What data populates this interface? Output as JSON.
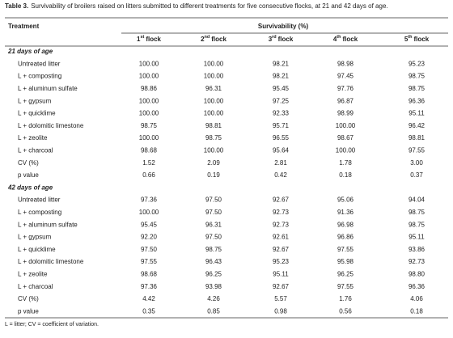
{
  "table": {
    "label": "Table 3.",
    "caption": "Survivability of broilers raised on litters submitted to different treatments for five consecutive flocks, at 21 and 42 days of age.",
    "row_header": "Treatment",
    "group_header": "Survivability (%)",
    "columns": [
      {
        "number": "1",
        "suffix": "st",
        "word": "flock"
      },
      {
        "number": "2",
        "suffix": "nd",
        "word": "flock"
      },
      {
        "number": "3",
        "suffix": "rd",
        "word": "flock"
      },
      {
        "number": "4",
        "suffix": "th",
        "word": "flock"
      },
      {
        "number": "5",
        "suffix": "th",
        "word": "flock"
      }
    ],
    "sections": [
      {
        "heading": "21 days of age",
        "rows": [
          {
            "treatment": "Untreated litter",
            "values": [
              "100.00",
              "100.00",
              "98.21",
              "98.98",
              "95.23"
            ]
          },
          {
            "treatment": "L + composting",
            "values": [
              "100.00",
              "100.00",
              "98.21",
              "97.45",
              "98.75"
            ]
          },
          {
            "treatment": "L + aluminum sulfate",
            "values": [
              "98.86",
              "96.31",
              "95.45",
              "97.76",
              "98.75"
            ]
          },
          {
            "treatment": "L + gypsum",
            "values": [
              "100.00",
              "100.00",
              "97.25",
              "96.87",
              "96.36"
            ]
          },
          {
            "treatment": "L + quicklime",
            "values": [
              "100.00",
              "100.00",
              "92.33",
              "98.99",
              "95.11"
            ]
          },
          {
            "treatment": "L + dolomitic limestone",
            "values": [
              "98.75",
              "98.81",
              "95.71",
              "100.00",
              "96.42"
            ]
          },
          {
            "treatment": "L + zeolite",
            "values": [
              "100.00",
              "98.75",
              "96.55",
              "98.67",
              "98.81"
            ]
          },
          {
            "treatment": "L + charcoal",
            "values": [
              "98.68",
              "100.00",
              "95.64",
              "100.00",
              "97.55"
            ]
          },
          {
            "treatment": "CV (%)",
            "values": [
              "1.52",
              "2.09",
              "2.81",
              "1.78",
              "3.00"
            ]
          },
          {
            "treatment": "p value",
            "values": [
              "0.66",
              "0.19",
              "0.42",
              "0.18",
              "0.37"
            ]
          }
        ]
      },
      {
        "heading": "42 days of age",
        "rows": [
          {
            "treatment": "Untreated litter",
            "values": [
              "97.36",
              "97.50",
              "92.67",
              "95.06",
              "94.04"
            ]
          },
          {
            "treatment": "L + composting",
            "values": [
              "100.00",
              "97.50",
              "92.73",
              "91.36",
              "98.75"
            ]
          },
          {
            "treatment": "L + aluminum sulfate",
            "values": [
              "95.45",
              "96.31",
              "92.73",
              "96.98",
              "98.75"
            ]
          },
          {
            "treatment": "L + gypsum",
            "values": [
              "92.20",
              "97.50",
              "92.61",
              "96.86",
              "95.11"
            ]
          },
          {
            "treatment": "L + quicklime",
            "values": [
              "97.50",
              "98.75",
              "92.67",
              "97.55",
              "93.86"
            ]
          },
          {
            "treatment": "L + dolomitic limestone",
            "values": [
              "97.55",
              "96.43",
              "95.23",
              "95.98",
              "92.73"
            ]
          },
          {
            "treatment": "L + zeolite",
            "values": [
              "98.68",
              "96.25",
              "95.11",
              "96.25",
              "98.80"
            ]
          },
          {
            "treatment": "L + charcoal",
            "values": [
              "97.36",
              "93.98",
              "92.67",
              "97.55",
              "96.36"
            ]
          },
          {
            "treatment": "CV (%)",
            "values": [
              "4.42",
              "4.26",
              "5.57",
              "1.76",
              "4.06"
            ]
          },
          {
            "treatment": "p value",
            "values": [
              "0.35",
              "0.85",
              "0.98",
              "0.56",
              "0.18"
            ]
          }
        ]
      }
    ],
    "footnote": "L = litter; CV = coefficient of variation."
  }
}
